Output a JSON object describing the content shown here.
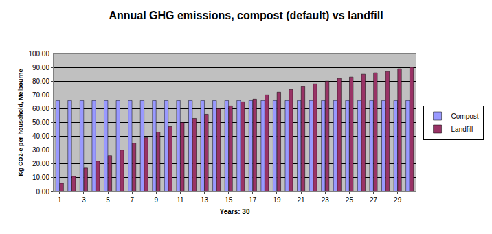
{
  "chart_data": {
    "type": "bar",
    "title": "Annual GHG emissions, compost (default) vs landfill",
    "x_label": "Years: 30",
    "y_label": "Kg CO2-e per household, Melbourne",
    "categories": [
      "1",
      null,
      "3",
      null,
      "5",
      null,
      "7",
      null,
      "9",
      null,
      "11",
      null,
      "13",
      null,
      "15",
      null,
      "17",
      null,
      "19",
      null,
      "21",
      null,
      "23",
      null,
      "25",
      null,
      "27",
      null,
      "29",
      null
    ],
    "series": [
      {
        "name": "Compost",
        "color": "#9999ff",
        "values": [
          66,
          66,
          66,
          66,
          66,
          66,
          66,
          66,
          66,
          66,
          66,
          66,
          66,
          66,
          66,
          66,
          66,
          66,
          66,
          66,
          66,
          66,
          66,
          66,
          66,
          66,
          66,
          66,
          66,
          66
        ]
      },
      {
        "name": "Landfill",
        "color": "#993366",
        "values": [
          6,
          11,
          17,
          22,
          26,
          30,
          35,
          39,
          43,
          47,
          50,
          53,
          56,
          60,
          62,
          65,
          67,
          70,
          72,
          74,
          76,
          78,
          80,
          82,
          83,
          85,
          86,
          87,
          89,
          90
        ]
      }
    ],
    "ylim": [
      0,
      100
    ],
    "yticks": [
      {
        "value": 0,
        "label": "0.00"
      },
      {
        "value": 10,
        "label": "10.00"
      },
      {
        "value": 20,
        "label": "20.00"
      },
      {
        "value": 30,
        "label": "30.00"
      },
      {
        "value": 40,
        "label": "40.00"
      },
      {
        "value": 50,
        "label": "50.00"
      },
      {
        "value": 60,
        "label": "60.00"
      },
      {
        "value": 70,
        "label": "70.00"
      },
      {
        "value": 80,
        "label": "80.00"
      },
      {
        "value": 90,
        "label": "90.00"
      },
      {
        "value": 100,
        "label": "100.00"
      }
    ],
    "grid": true,
    "legend": "right"
  }
}
